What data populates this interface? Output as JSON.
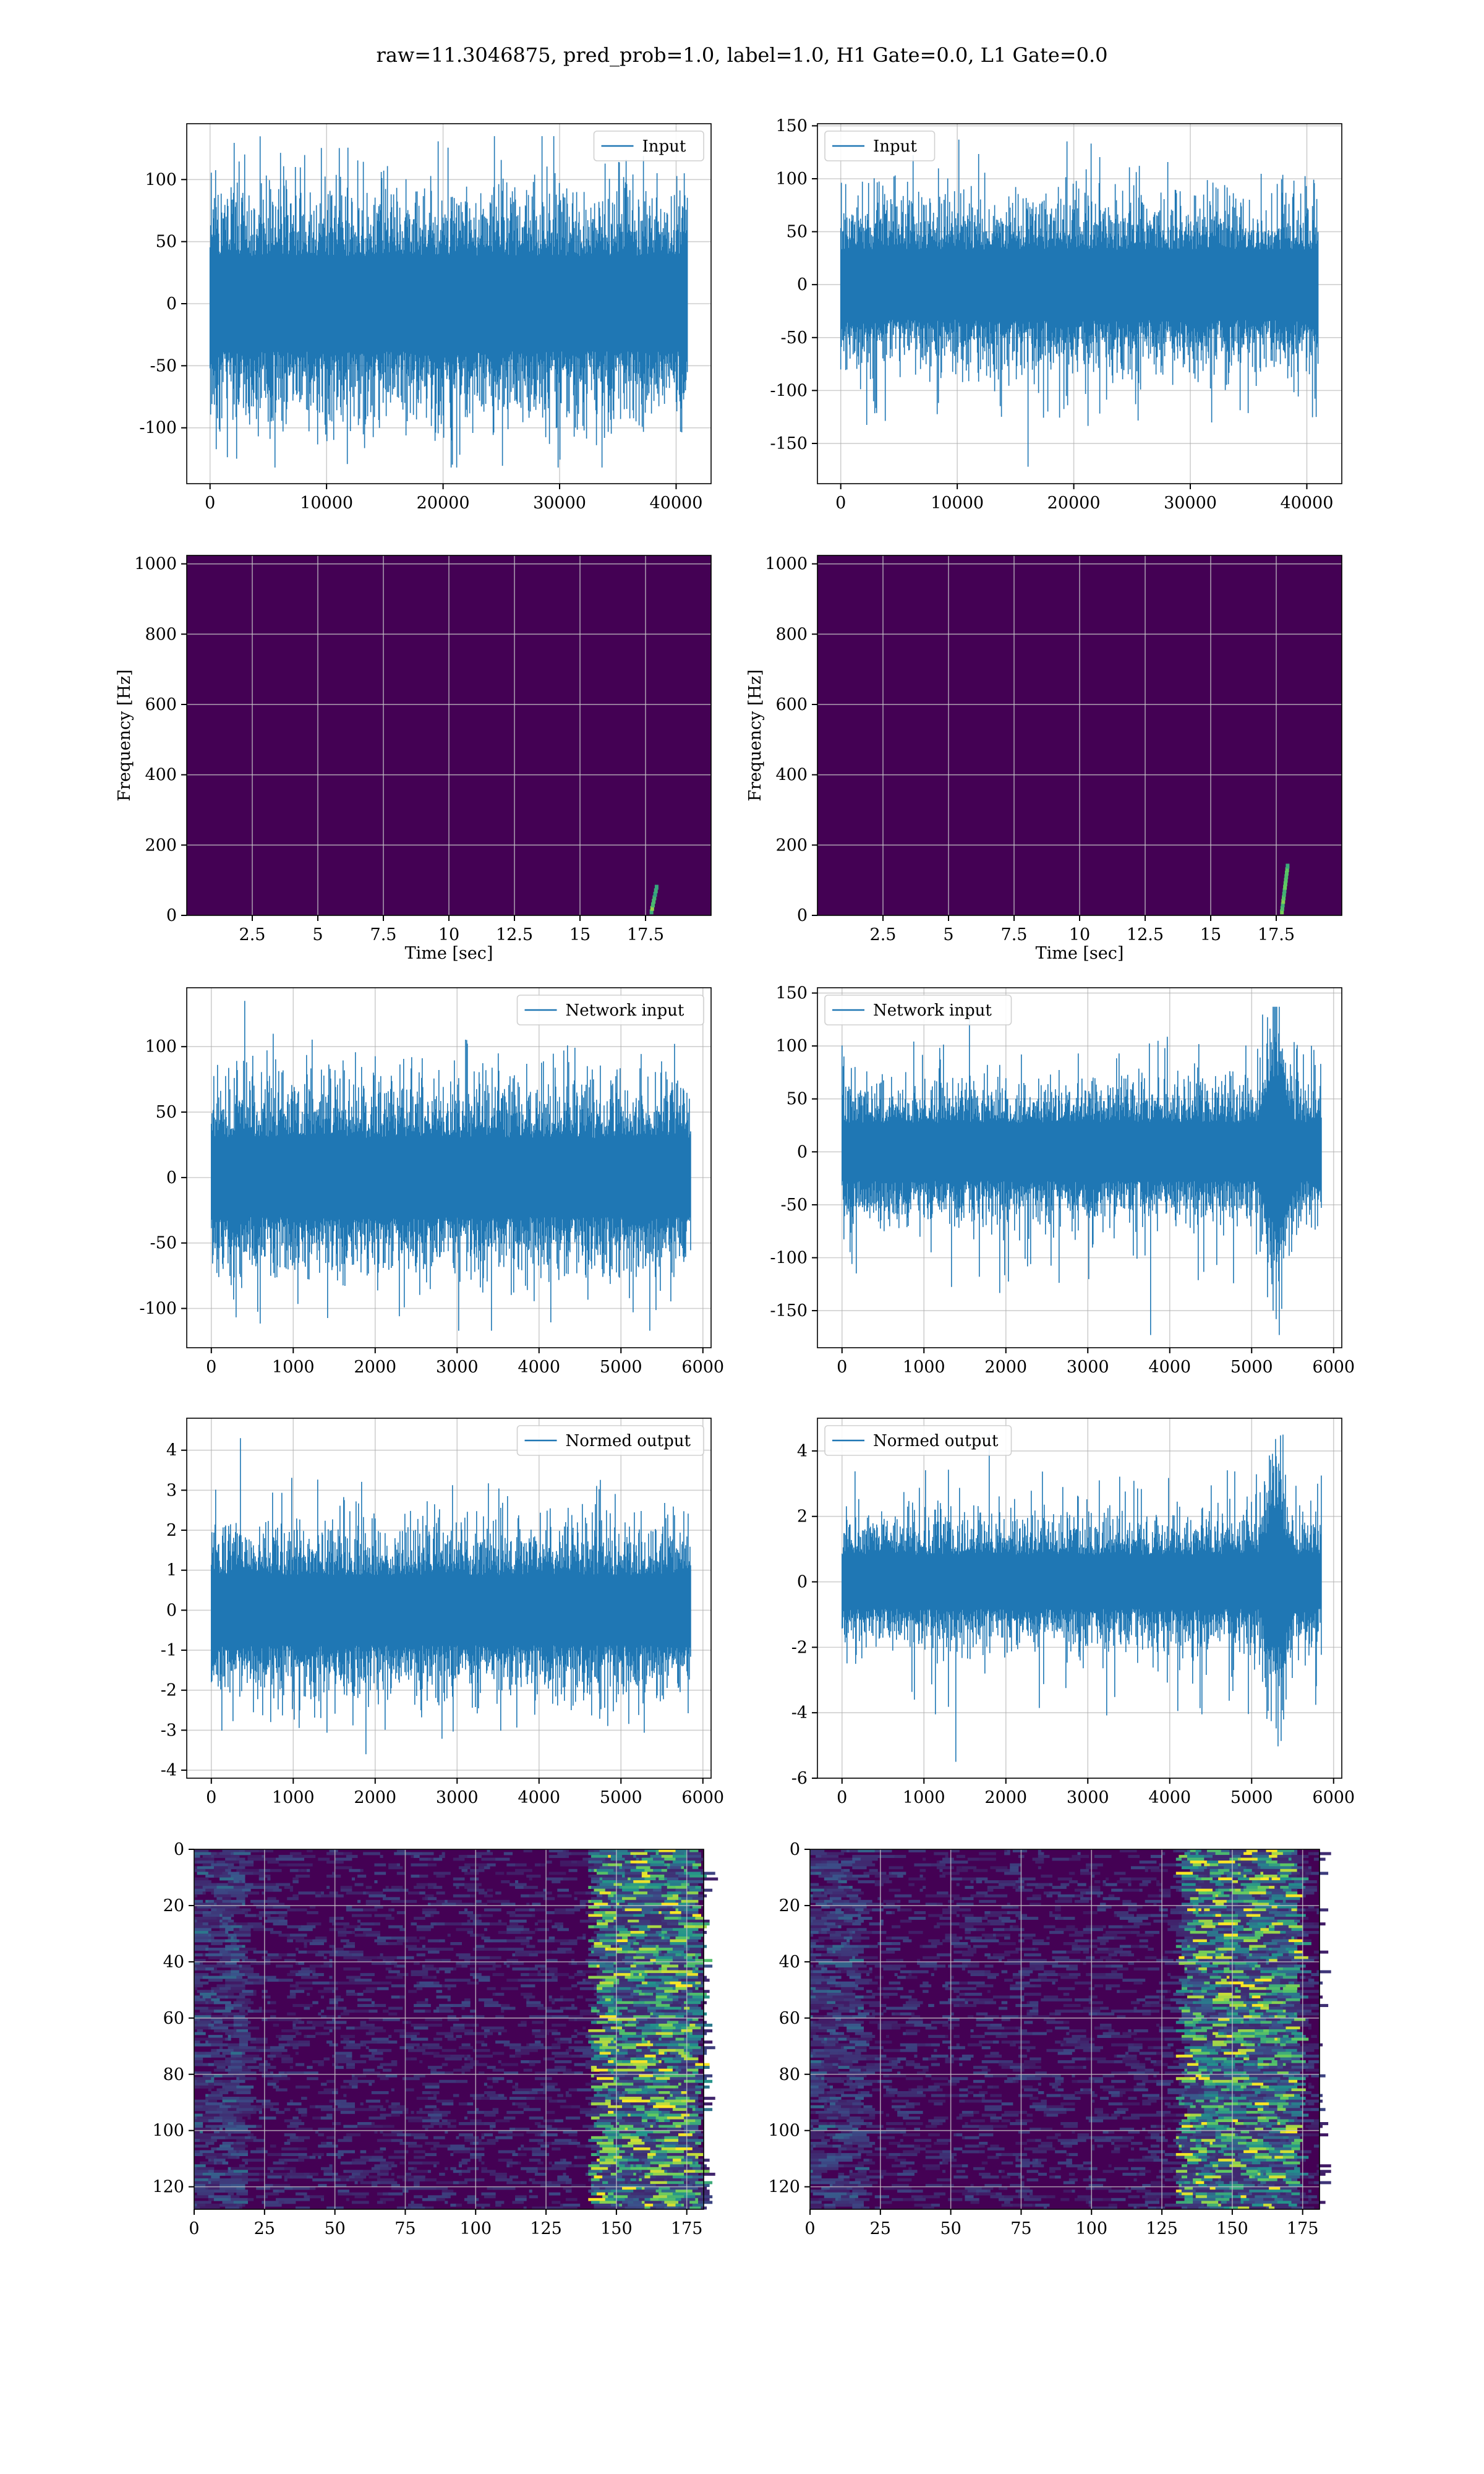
{
  "figure_title": "raw=11.3046875, pred_prob=1.0, label=1.0, H1 Gate=0.0, L1 Gate=0.0",
  "colors": {
    "series": "#1f77b4",
    "grid": "#b0b0b0",
    "spec_bg": "#440154",
    "spec_hi": "#21908d",
    "spec_max": "#fde725"
  },
  "chart_data": [
    {
      "id": "input-h1",
      "type": "line",
      "legend": "Input",
      "legend_loc": "upper right",
      "xlim": [
        -2000,
        43000
      ],
      "ylim": [
        -145,
        145
      ],
      "xticks": [
        0,
        10000,
        20000,
        30000,
        40000
      ],
      "yticks": [
        -100,
        -50,
        0,
        50,
        100
      ],
      "series": [
        {
          "x_range": [
            0,
            40960
          ],
          "n_points": 40960,
          "envelope": [
            -132,
            135
          ],
          "typical_amplitude": 70
        }
      ],
      "grid": true
    },
    {
      "id": "input-l1",
      "type": "line",
      "legend": "Input",
      "legend_loc": "upper left",
      "xlim": [
        -2000,
        43000
      ],
      "ylim": [
        -188,
        152
      ],
      "xticks": [
        0,
        10000,
        20000,
        30000,
        40000
      ],
      "yticks": [
        -150,
        -100,
        -50,
        0,
        50,
        100,
        150
      ],
      "series": [
        {
          "x_range": [
            0,
            40960
          ],
          "n_points": 40960,
          "envelope": [
            -172,
            137
          ],
          "typical_amplitude": 60
        }
      ],
      "grid": true
    },
    {
      "id": "spec-h1",
      "type": "heatmap",
      "xlabel": "Time [sec]",
      "ylabel": "Frequency [Hz]",
      "xlim": [
        0,
        20
      ],
      "ylim": [
        0,
        1024
      ],
      "xticks": [
        2.5,
        5.0,
        7.5,
        10.0,
        12.5,
        15.0,
        17.5
      ],
      "yticks": [
        0,
        200,
        400,
        600,
        800,
        1000
      ],
      "features": [
        "noise",
        "narrow chirp near 17.7 s below 100 Hz"
      ],
      "grid": true
    },
    {
      "id": "spec-l1",
      "type": "heatmap",
      "xlabel": "Time [sec]",
      "ylabel": "Frequency [Hz]",
      "xlim": [
        0,
        20
      ],
      "ylim": [
        0,
        1024
      ],
      "xticks": [
        2.5,
        5.0,
        7.5,
        10.0,
        12.5,
        15.0,
        17.5
      ],
      "yticks": [
        0,
        200,
        400,
        600,
        800,
        1000
      ],
      "features": [
        "noise",
        "narrow chirp near 17.7 s up to ~150 Hz"
      ],
      "grid": true
    },
    {
      "id": "netin-h1",
      "type": "line",
      "legend": "Network input",
      "legend_loc": "upper right",
      "xlim": [
        -300,
        6100
      ],
      "ylim": [
        -130,
        145
      ],
      "xticks": [
        0,
        1000,
        2000,
        3000,
        4000,
        5000,
        6000
      ],
      "yticks": [
        -100,
        -50,
        0,
        50,
        100
      ],
      "series": [
        {
          "x_range": [
            0,
            5850
          ],
          "n_points": 5850,
          "envelope": [
            -117,
            135
          ],
          "typical_amplitude": 55
        }
      ],
      "grid": true
    },
    {
      "id": "netin-l1",
      "type": "line",
      "legend": "Network input",
      "legend_loc": "upper left",
      "xlim": [
        -300,
        6100
      ],
      "ylim": [
        -185,
        155
      ],
      "xticks": [
        0,
        1000,
        2000,
        3000,
        4000,
        5000,
        6000
      ],
      "yticks": [
        -150,
        -100,
        -50,
        0,
        50,
        100,
        150
      ],
      "series": [
        {
          "x_range": [
            0,
            5850
          ],
          "n_points": 5850,
          "envelope": [
            -173,
            137
          ],
          "typical_amplitude": 50,
          "burst_at": 5300
        }
      ],
      "grid": true
    },
    {
      "id": "normed-h1",
      "type": "line",
      "legend": "Normed output",
      "legend_loc": "upper right",
      "xlim": [
        -300,
        6100
      ],
      "ylim": [
        -4.2,
        4.8
      ],
      "xticks": [
        0,
        1000,
        2000,
        3000,
        4000,
        5000,
        6000
      ],
      "yticks": [
        -4,
        -3,
        -2,
        -1,
        0,
        1,
        2,
        3,
        4
      ],
      "series": [
        {
          "x_range": [
            0,
            5850
          ],
          "n_points": 5850,
          "envelope": [
            -3.6,
            4.3
          ],
          "typical_amplitude": 1.6
        }
      ],
      "grid": true
    },
    {
      "id": "normed-l1",
      "type": "line",
      "legend": "Normed output",
      "legend_loc": "upper left",
      "xlim": [
        -300,
        6100
      ],
      "ylim": [
        -6.0,
        5.0
      ],
      "xticks": [
        0,
        1000,
        2000,
        3000,
        4000,
        5000,
        6000
      ],
      "yticks": [
        -6,
        -4,
        -2,
        0,
        2,
        4
      ],
      "series": [
        {
          "x_range": [
            0,
            5850
          ],
          "n_points": 5850,
          "envelope": [
            -5.5,
            4.5
          ],
          "typical_amplitude": 1.5,
          "burst_at": 5300
        }
      ],
      "grid": true
    },
    {
      "id": "feat-h1",
      "type": "heatmap",
      "xlim": [
        0,
        181
      ],
      "ylim": [
        128,
        0
      ],
      "xticks": [
        0,
        25,
        50,
        75,
        100,
        125,
        150,
        175
      ],
      "yticks": [
        0,
        20,
        40,
        60,
        80,
        100,
        120
      ],
      "features": [
        "bright activations concentrated at columns ~150-175"
      ],
      "grid": true
    },
    {
      "id": "feat-l1",
      "type": "heatmap",
      "xlim": [
        0,
        181
      ],
      "ylim": [
        128,
        0
      ],
      "xticks": [
        0,
        25,
        50,
        75,
        100,
        125,
        150,
        175
      ],
      "yticks": [
        0,
        20,
        40,
        60,
        80,
        100,
        120
      ],
      "features": [
        "bright activations concentrated at columns ~140-170"
      ],
      "grid": true
    }
  ]
}
